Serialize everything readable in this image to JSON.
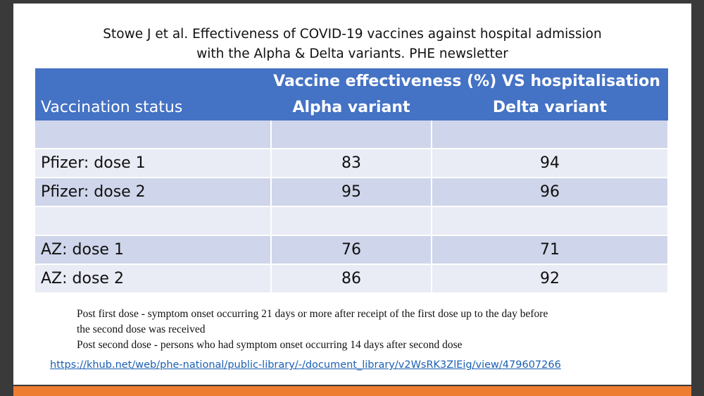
{
  "title": {
    "line1": "Stowe J et al. Effectiveness of COVID-19 vaccines against hospital admission",
    "line2": "with the Alpha & Delta variants. PHE newsletter"
  },
  "table": {
    "header": {
      "status": "Vaccination status",
      "main": "Vaccine effectiveness (%) VS hospitalisation",
      "alpha": "Alpha variant",
      "delta": "Delta variant"
    },
    "rows": [
      {
        "status": "",
        "alpha": "",
        "delta": ""
      },
      {
        "status": "Pfizer: dose 1",
        "alpha": "83",
        "delta": "94"
      },
      {
        "status": "Pfizer: dose 2",
        "alpha": "95",
        "delta": "96"
      },
      {
        "status": "",
        "alpha": "",
        "delta": ""
      },
      {
        "status": "AZ: dose 1",
        "alpha": "76",
        "delta": "71"
      },
      {
        "status": "AZ: dose 2",
        "alpha": "86",
        "delta": "92"
      }
    ]
  },
  "notes": {
    "line1": "Post first dose - symptom onset occurring 21 days or more after receipt of the first dose up to the day before",
    "line2": "the second dose was received",
    "line3": "Post second dose - persons who had symptom onset occurring 14 days after second dose"
  },
  "link": {
    "text": "https://khub.net/web/phe-national/public-library/-/document_library/v2WsRK3ZlEig/view/479607266"
  },
  "colors": {
    "header_bg": "#4472c4",
    "row_dark": "#cfd5ea",
    "row_light": "#e9ebf5",
    "accent_bar": "#ee7d31"
  }
}
